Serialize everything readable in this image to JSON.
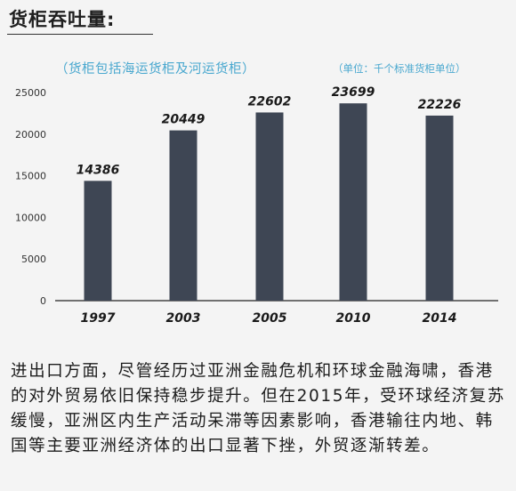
{
  "heading": "货柜吞吐量:",
  "chart_data": {
    "type": "bar",
    "title": "货柜吞吐量:",
    "subtitle": "（货柜包括海运货柜及河运货柜）",
    "unit_note": "（单位：千个标准货柜单位）",
    "categories": [
      "1997",
      "2003",
      "2005",
      "2010",
      "2014"
    ],
    "values": [
      14386,
      20449,
      22602,
      23699,
      22226
    ],
    "ylim": [
      0,
      25000
    ],
    "yticks": [
      0,
      5000,
      10000,
      15000,
      20000,
      25000
    ],
    "grid": false,
    "bar_color": "#3e4654"
  },
  "body_text": "进出口方面，尽管经历过亚洲金融危机和环球金融海啸，香港的对外贸易依旧保持稳步提升。但在2015年，受环球经济复苏缓慢，亚洲区内生产活动呆滞等因素影响，香港输往内地、韩国等主要亚洲经济体的出口显著下挫，外贸逐渐转差。"
}
